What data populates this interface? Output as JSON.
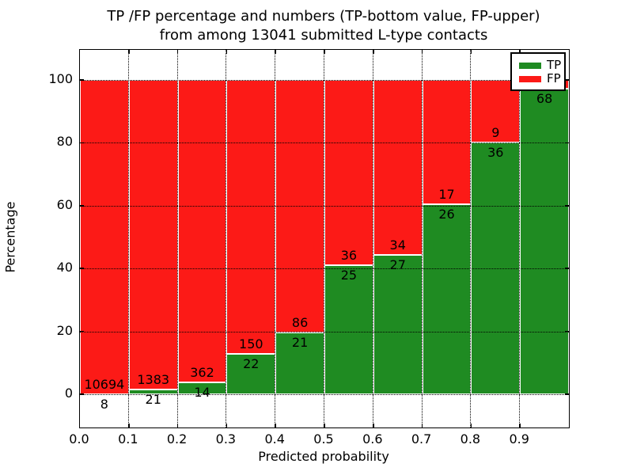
{
  "title": {
    "line1": "TP /FP percentage and numbers (TP-bottom value, FP-upper)",
    "line2": "from among 13041 submitted L-type contacts"
  },
  "axes": {
    "xlabel": "Predicted probability",
    "ylabel": "Percentage"
  },
  "legend": {
    "items": [
      {
        "label": "TP",
        "color": "#1f8b22"
      },
      {
        "label": "FP",
        "color": "#fc1a17"
      }
    ]
  },
  "chart_data": {
    "type": "bar",
    "variant": "stacked-normalized-to-100-percent",
    "title": "TP /FP percentage and numbers (TP-bottom value, FP-upper) from among 13041 submitted L-type contacts",
    "xlabel": "Predicted probability",
    "ylabel": "Percentage",
    "x_tick_labels": [
      "0.0",
      "0.1",
      "0.2",
      "0.3",
      "0.4",
      "0.5",
      "0.6",
      "0.7",
      "0.8",
      "0.9"
    ],
    "y_ticks": [
      0,
      20,
      40,
      60,
      80,
      100
    ],
    "xlim": [
      0.0,
      1.0
    ],
    "ylim_display": [
      -10.6,
      109.6
    ],
    "bin_width": 0.1,
    "bin_starts": [
      0.0,
      0.1,
      0.2,
      0.3,
      0.4,
      0.5,
      0.6,
      0.7,
      0.8,
      0.9
    ],
    "series": [
      {
        "name": "TP",
        "color": "#1f8b22",
        "counts": [
          8,
          21,
          14,
          22,
          21,
          25,
          27,
          26,
          36,
          68
        ]
      },
      {
        "name": "FP",
        "color": "#fc1a17",
        "counts": [
          10694,
          1383,
          362,
          150,
          86,
          36,
          34,
          17,
          9,
          2
        ]
      }
    ],
    "visible_value_labels": {
      "tp": [
        "8",
        "21",
        "14",
        "22",
        "21",
        "25",
        "27",
        "26",
        "36",
        "68"
      ],
      "fp": [
        "10694",
        "1383",
        "362",
        "150",
        "86",
        "36",
        "34",
        "17",
        "9",
        ""
      ]
    },
    "note": "FP count label of last bin is hidden behind the legend box",
    "grid": {
      "style": "dotted",
      "color": "#000000"
    },
    "legend_position": "upper right",
    "total_from_title": 13041
  }
}
